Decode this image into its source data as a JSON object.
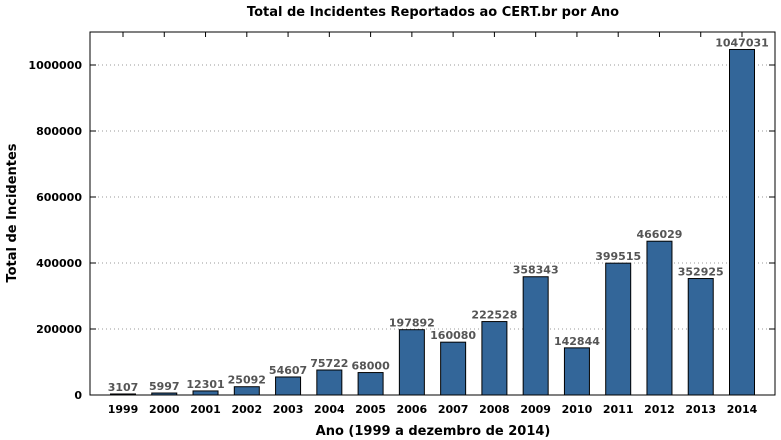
{
  "chart_data": {
    "type": "bar",
    "title": "Total de Incidentes Reportados ao CERT.br por Ano",
    "xlabel": "Ano (1999 a dezembro de 2014)",
    "ylabel": "Total de Incidentes",
    "categories": [
      "1999",
      "2000",
      "2001",
      "2002",
      "2003",
      "2004",
      "2005",
      "2006",
      "2007",
      "2008",
      "2009",
      "2010",
      "2011",
      "2012",
      "2013",
      "2014"
    ],
    "values": [
      3107,
      5997,
      12301,
      25092,
      54607,
      75722,
      68000,
      197892,
      160080,
      222528,
      358343,
      142844,
      399515,
      466029,
      352925,
      1047031
    ],
    "value_labels": [
      "3107",
      "5997",
      "12301",
      "25092",
      "54607",
      "75722",
      "68000",
      "197892",
      "160080",
      "222528",
      "358343",
      "142844",
      "399515",
      "466029",
      "352925",
      "1047031"
    ],
    "ylim": [
      0,
      1100000
    ],
    "yticks": [
      0,
      200000,
      400000,
      600000,
      800000,
      1000000
    ],
    "ytick_labels": [
      "0",
      "200000",
      "400000",
      "600000",
      "800000",
      "1000000"
    ],
    "grid": true,
    "colors": {
      "bar": "#336699",
      "value_label": "#555555"
    }
  }
}
